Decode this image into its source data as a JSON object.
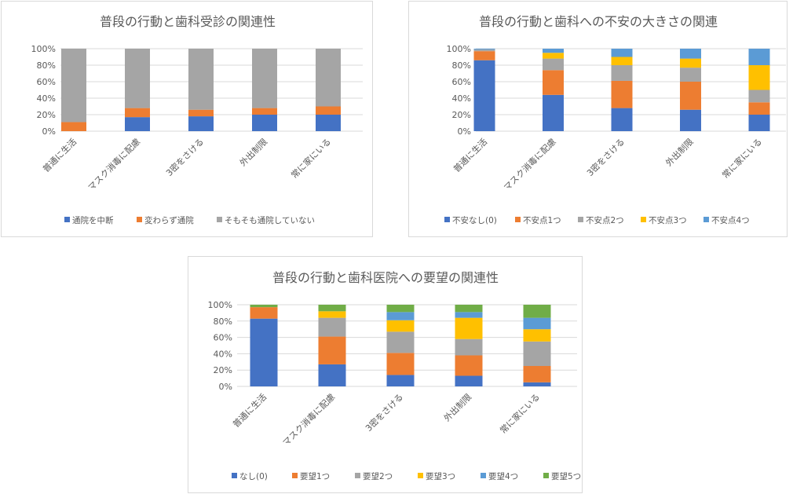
{
  "chart_data": [
    {
      "type": "bar",
      "stacked": true,
      "percent": true,
      "title": "普段の行動と歯科受診の関連性",
      "categories": [
        "普通に生活",
        "マスク消毒に配慮",
        "3密をさける",
        "外出制限",
        "常に家にいる"
      ],
      "yticks": [
        "0%",
        "20%",
        "40%",
        "60%",
        "80%",
        "100%"
      ],
      "ylim": [
        0,
        100
      ],
      "grid": true,
      "legend_position": "bottom",
      "series": [
        {
          "name": "通院を中断",
          "color": "#4472c4",
          "values": [
            0,
            17,
            18,
            20,
            20
          ]
        },
        {
          "name": "変わらず通院",
          "color": "#ed7d31",
          "values": [
            11,
            11,
            8,
            8,
            10
          ]
        },
        {
          "name": "そもそも通院していない",
          "color": "#a5a5a5",
          "values": [
            89,
            72,
            74,
            72,
            70
          ]
        }
      ]
    },
    {
      "type": "bar",
      "stacked": true,
      "percent": true,
      "title": "普段の行動と歯科への不安の大きさの関連",
      "categories": [
        "普通に生活",
        "マスク消毒に配慮",
        "3密をさける",
        "外出制限",
        "常に家にいる"
      ],
      "yticks": [
        "0%",
        "20%",
        "40%",
        "60%",
        "80%",
        "100%"
      ],
      "ylim": [
        0,
        100
      ],
      "grid": true,
      "legend_position": "bottom",
      "series": [
        {
          "name": "不安なし(0)",
          "color": "#4472c4",
          "values": [
            86,
            44,
            28,
            26,
            20
          ]
        },
        {
          "name": "不安点1つ",
          "color": "#ed7d31",
          "values": [
            11,
            30,
            33,
            34,
            15
          ]
        },
        {
          "name": "不安点2つ",
          "color": "#a5a5a5",
          "values": [
            2,
            14,
            19,
            17,
            15
          ]
        },
        {
          "name": "不安点3つ",
          "color": "#ffc000",
          "values": [
            0,
            7,
            10,
            11,
            30
          ]
        },
        {
          "name": "不安点4つ",
          "color": "#5b9bd5",
          "values": [
            1,
            5,
            10,
            12,
            20
          ]
        }
      ]
    },
    {
      "type": "bar",
      "stacked": true,
      "percent": true,
      "title": "普段の行動と歯科医院への要望の関連性",
      "categories": [
        "普通に生活",
        "マスク消毒に配慮",
        "3密をさける",
        "外出制限",
        "常に家にいる"
      ],
      "yticks": [
        "0%",
        "20%",
        "40%",
        "60%",
        "80%",
        "100%"
      ],
      "ylim": [
        0,
        100
      ],
      "grid": true,
      "legend_position": "bottom",
      "series": [
        {
          "name": "なし(0)",
          "color": "#4472c4",
          "values": [
            83,
            27,
            14,
            13,
            5
          ]
        },
        {
          "name": "要望1つ",
          "color": "#ed7d31",
          "values": [
            14,
            34,
            27,
            25,
            20
          ]
        },
        {
          "name": "要望2つ",
          "color": "#a5a5a5",
          "values": [
            0,
            23,
            26,
            20,
            30
          ]
        },
        {
          "name": "要望3つ",
          "color": "#ffc000",
          "values": [
            0,
            8,
            14,
            26,
            15
          ]
        },
        {
          "name": "要望4つ",
          "color": "#5b9bd5",
          "values": [
            0,
            0,
            10,
            7,
            14
          ]
        },
        {
          "name": "要望5つ",
          "color": "#70ad47",
          "values": [
            3,
            8,
            9,
            9,
            16
          ]
        }
      ]
    }
  ]
}
